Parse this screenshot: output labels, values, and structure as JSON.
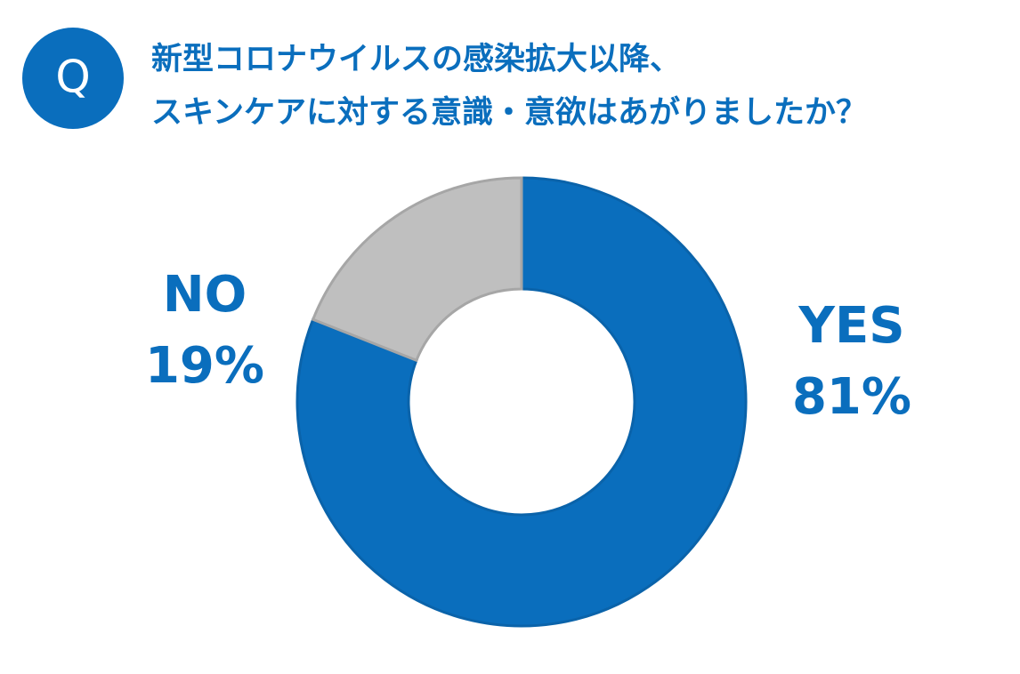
{
  "chart_data": {
    "type": "donut",
    "badge": "Q",
    "title": [
      "新型コロナウイルスの感染拡大以降、",
      "スキンケアに対する意識・意欲はあがりましたか？"
    ],
    "categories": [
      "YES",
      "NO"
    ],
    "values": [
      81,
      19
    ],
    "value_labels": [
      "81%",
      "19%"
    ],
    "colors": [
      "#0a6ebd",
      "#bfbfbf"
    ],
    "label_color": "#0a6ebd"
  }
}
